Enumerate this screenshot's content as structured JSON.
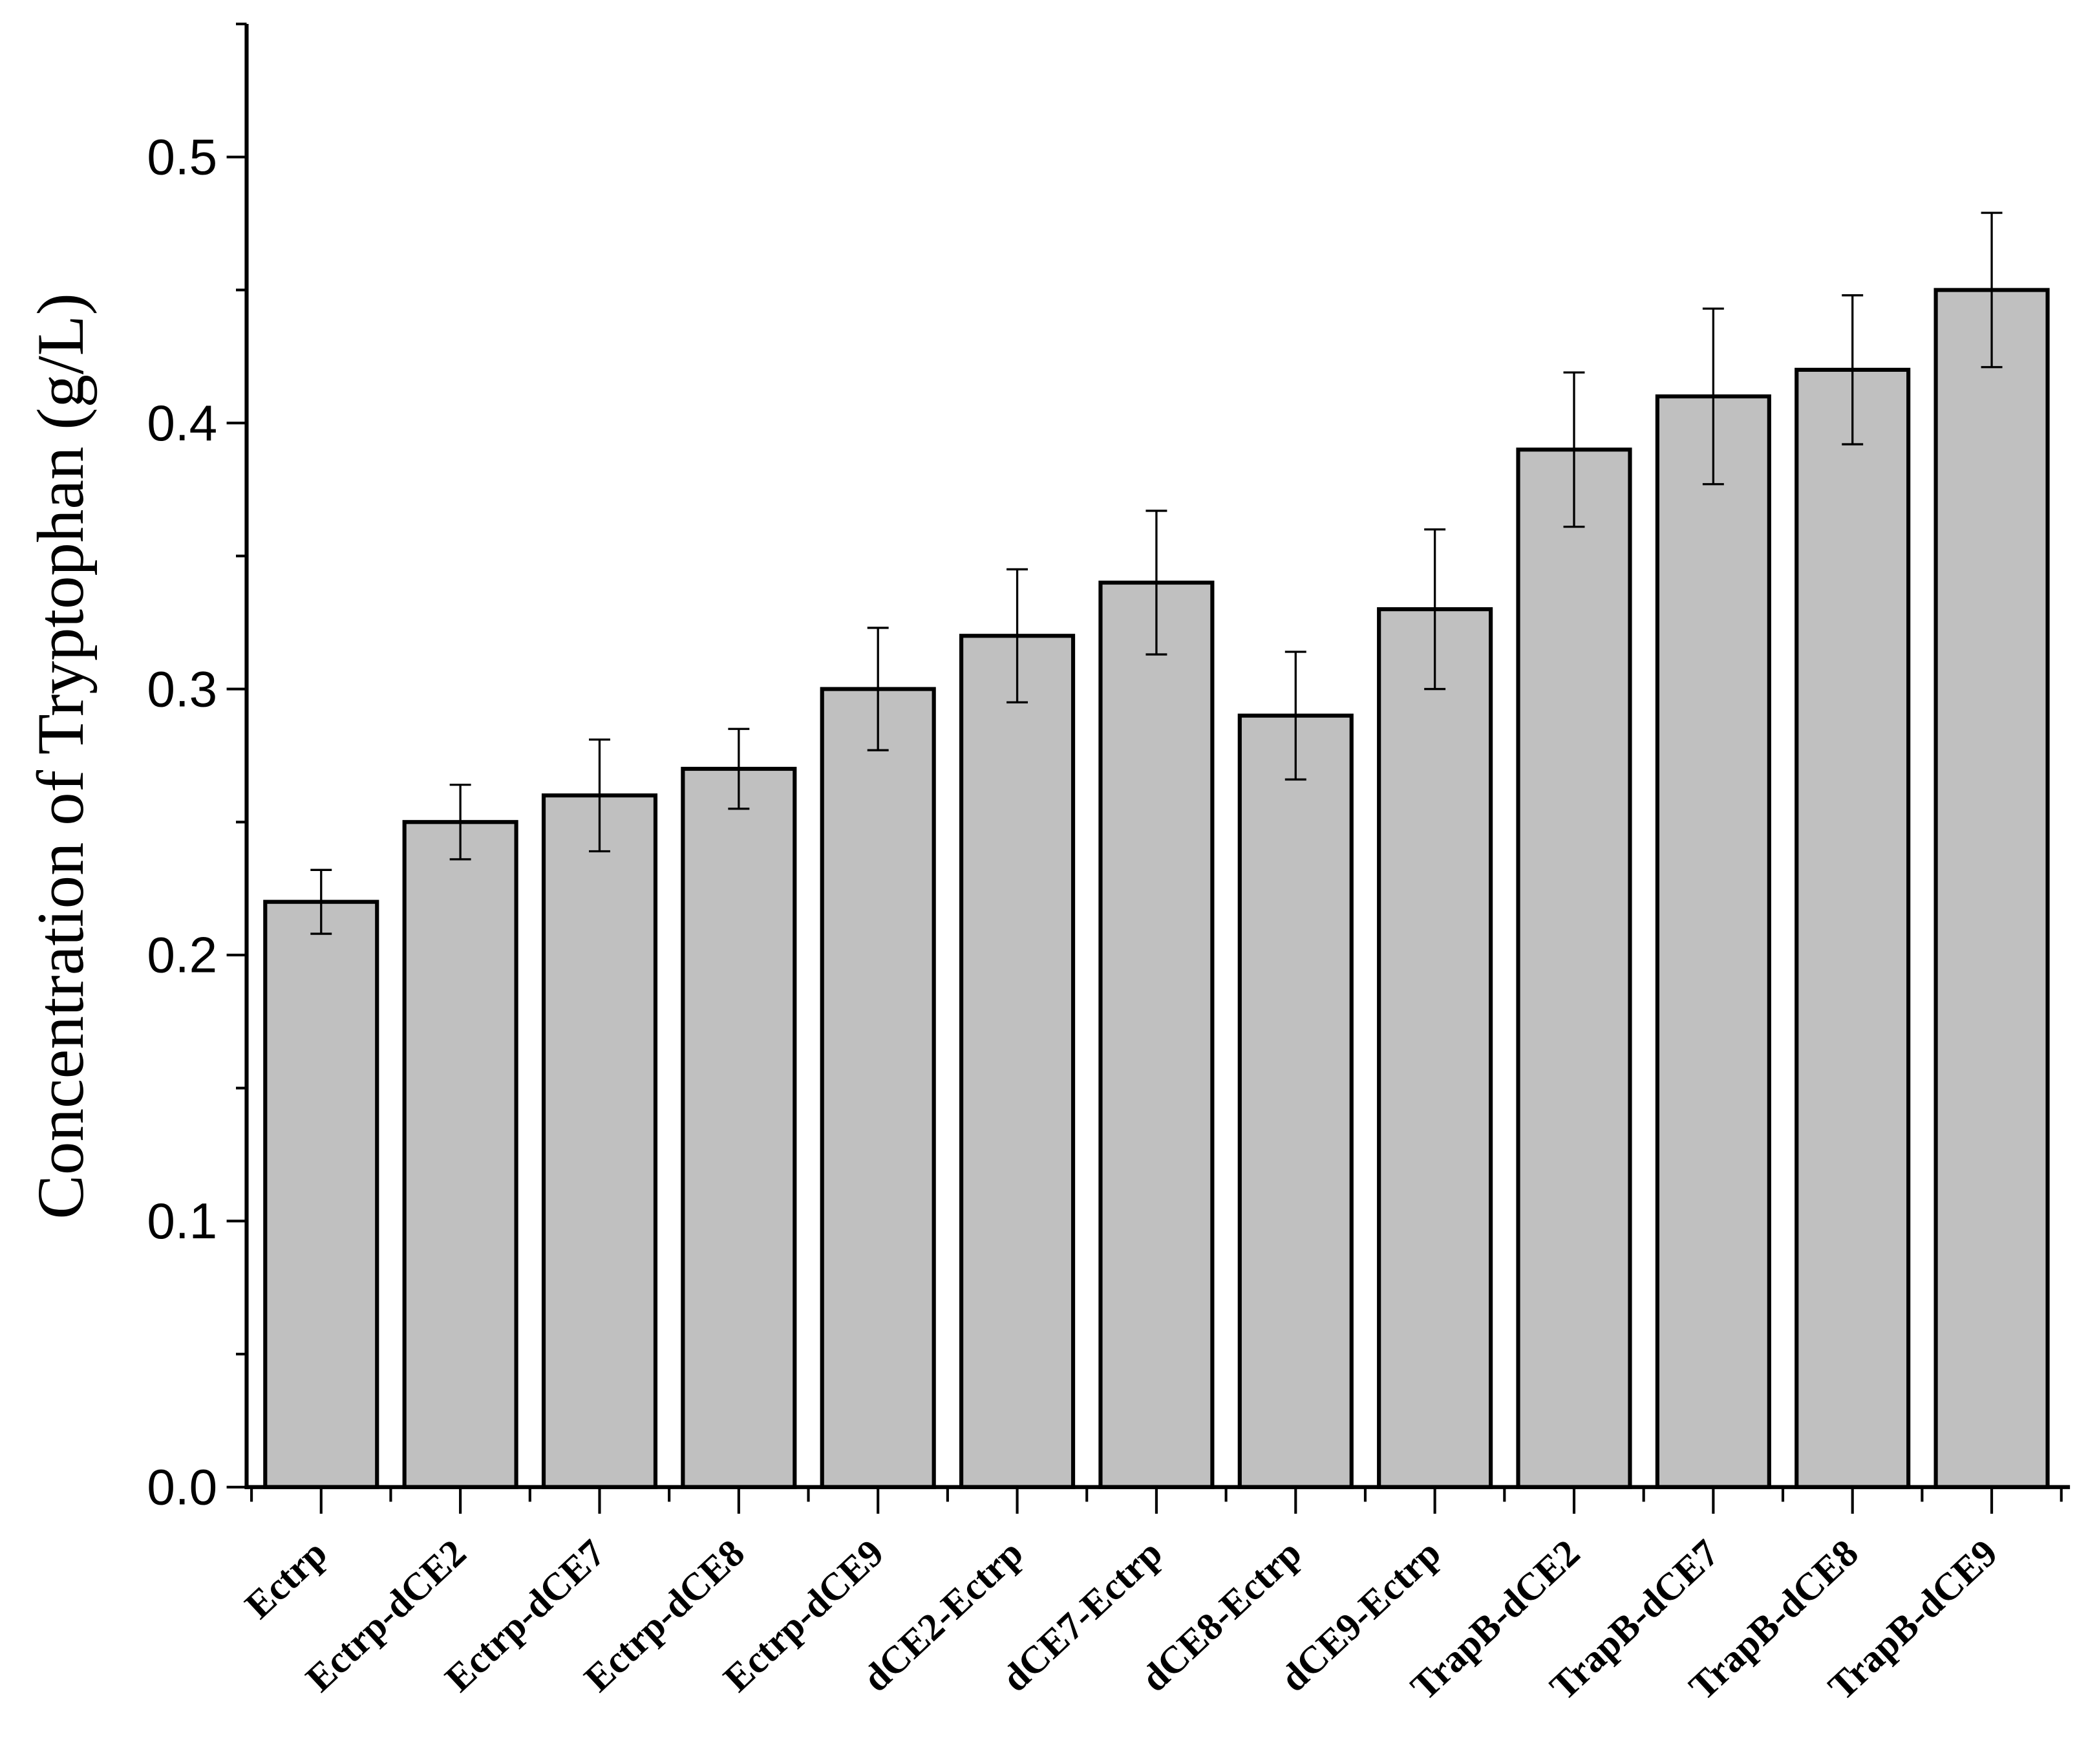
{
  "chart_data": {
    "type": "bar",
    "title": "",
    "xlabel": "",
    "ylabel": "Concentration of Tryptophan (g/L)",
    "ylim": [
      0,
      0.55
    ],
    "yticks": [
      "0.0",
      "0.1",
      "0.2",
      "0.3",
      "0.4",
      "0.5"
    ],
    "grid": false,
    "categories": [
      "Ectrp",
      "Ectrp-dCE2",
      "Ectrp-dCE7",
      "Ectrp-dCE8",
      "Ectrp-dCE9",
      "dCE2-Ectrp",
      "dCE7-Ectrp",
      "dCE8-Ectrp",
      "dCE9-Ectrp",
      "TrapB-dCE2",
      "TrapB-dCE7",
      "TrapB-dCE8",
      "TrapB-dCE9"
    ],
    "values": [
      0.22,
      0.25,
      0.26,
      0.27,
      0.3,
      0.32,
      0.34,
      0.29,
      0.33,
      0.39,
      0.41,
      0.42,
      0.45
    ],
    "errors": [
      0.012,
      0.014,
      0.021,
      0.015,
      0.023,
      0.025,
      0.027,
      0.024,
      0.03,
      0.029,
      0.033,
      0.028,
      0.029
    ],
    "bar_color": "#c0c0c0",
    "edge_color": "#000000"
  }
}
